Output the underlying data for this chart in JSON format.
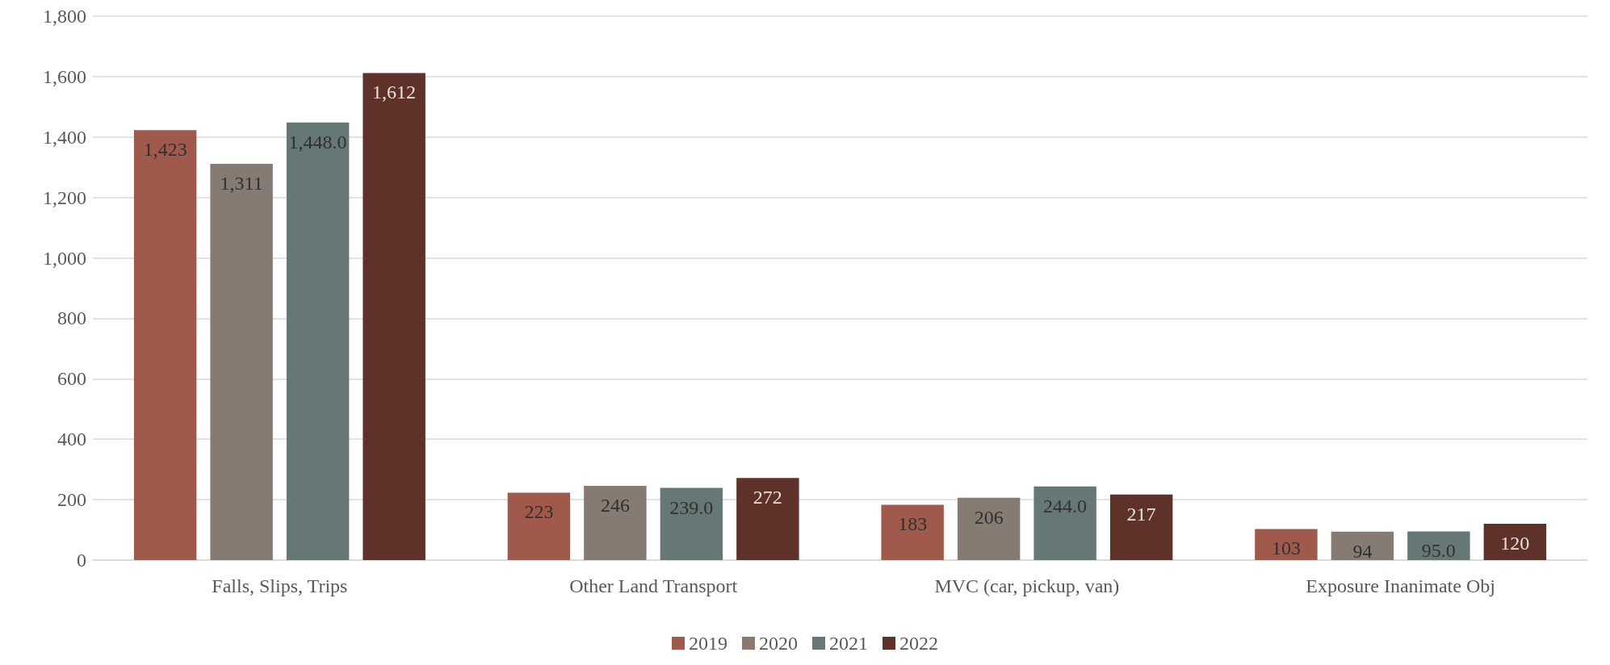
{
  "chart_data": {
    "type": "bar",
    "categories": [
      "Falls, Slips, Trips",
      "Other Land Transport",
      "MVC (car, pickup, van)",
      "Exposure Inanimate Obj"
    ],
    "series": [
      {
        "name": "2019",
        "color": "#a05a4c",
        "values": [
          1423,
          223,
          183,
          103
        ],
        "value_labels": [
          "1,423",
          "223",
          "183",
          "103"
        ]
      },
      {
        "name": "2020",
        "color": "#857b72",
        "values": [
          1311,
          246,
          206,
          94
        ],
        "value_labels": [
          "1,311",
          "246",
          "206",
          "94"
        ]
      },
      {
        "name": "2021",
        "color": "#657876",
        "values": [
          1448,
          239,
          244,
          95
        ],
        "value_labels": [
          "1,448.0",
          "239.0",
          "244.0",
          "95.0"
        ]
      },
      {
        "name": "2022",
        "color": "#5e3229",
        "values": [
          1612,
          272,
          217,
          120
        ],
        "value_labels": [
          "1,612",
          "272",
          "217",
          "120"
        ]
      }
    ],
    "ylim": [
      0,
      1800
    ],
    "yticks": [
      0,
      200,
      400,
      600,
      800,
      {
        "value": 1000,
        "label": "1,000"
      },
      {
        "value": 1200,
        "label": "1,200"
      },
      {
        "value": 1400,
        "label": "1,400"
      },
      {
        "value": 1600,
        "label": "1,600"
      },
      {
        "value": 1800,
        "label": "1,800"
      }
    ],
    "grid": "y",
    "legend": "bottom"
  }
}
